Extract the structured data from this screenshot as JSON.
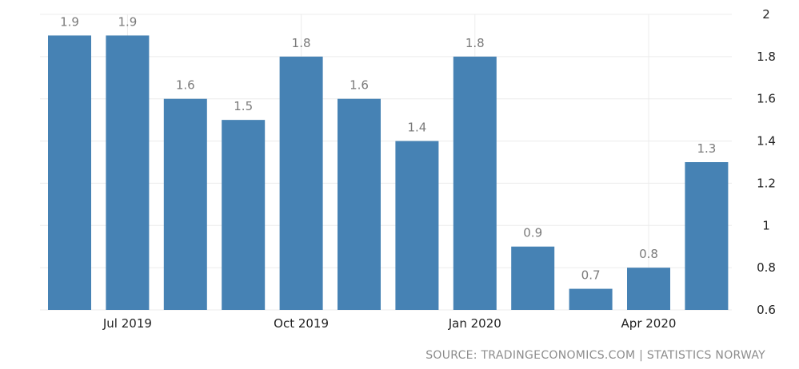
{
  "chart_data": {
    "type": "bar",
    "categories": [
      "Jun 2019",
      "Jul 2019",
      "Aug 2019",
      "Sep 2019",
      "Oct 2019",
      "Nov 2019",
      "Dec 2019",
      "Jan 2020",
      "Feb 2020",
      "Mar 2020",
      "Apr 2020",
      "May 2020"
    ],
    "values": [
      1.9,
      1.9,
      1.6,
      1.5,
      1.8,
      1.6,
      1.4,
      1.8,
      0.9,
      0.7,
      0.8,
      1.3
    ],
    "data_labels": [
      "1.9",
      "1.9",
      "1.6",
      "1.5",
      "1.8",
      "1.6",
      "1.4",
      "1.8",
      "0.9",
      "0.7",
      "0.8",
      "1.3"
    ],
    "x_tick_labels": [
      {
        "category_index": 1,
        "label": "Jul 2019"
      },
      {
        "category_index": 4,
        "label": "Oct 2019"
      },
      {
        "category_index": 7,
        "label": "Jan 2020"
      },
      {
        "category_index": 10,
        "label": "Apr 2020"
      }
    ],
    "y_ticks": [
      0.6,
      0.8,
      1,
      1.2,
      1.4,
      1.6,
      1.8,
      2
    ],
    "y_tick_labels": [
      "0.6",
      "0.8",
      "1",
      "1.2",
      "1.4",
      "1.6",
      "1.8",
      "2"
    ],
    "ylim": [
      0.6,
      2
    ],
    "y_axis_side": "right",
    "grid": true,
    "legend": false,
    "title": "",
    "xlabel": "",
    "ylabel": "",
    "colors": {
      "bar": "#4682b4",
      "grid": "#ececec",
      "label": "#7a7a7a",
      "axis_text": "#222222"
    }
  },
  "source_text": "SOURCE: TRADINGECONOMICS.COM | STATISTICS NORWAY"
}
